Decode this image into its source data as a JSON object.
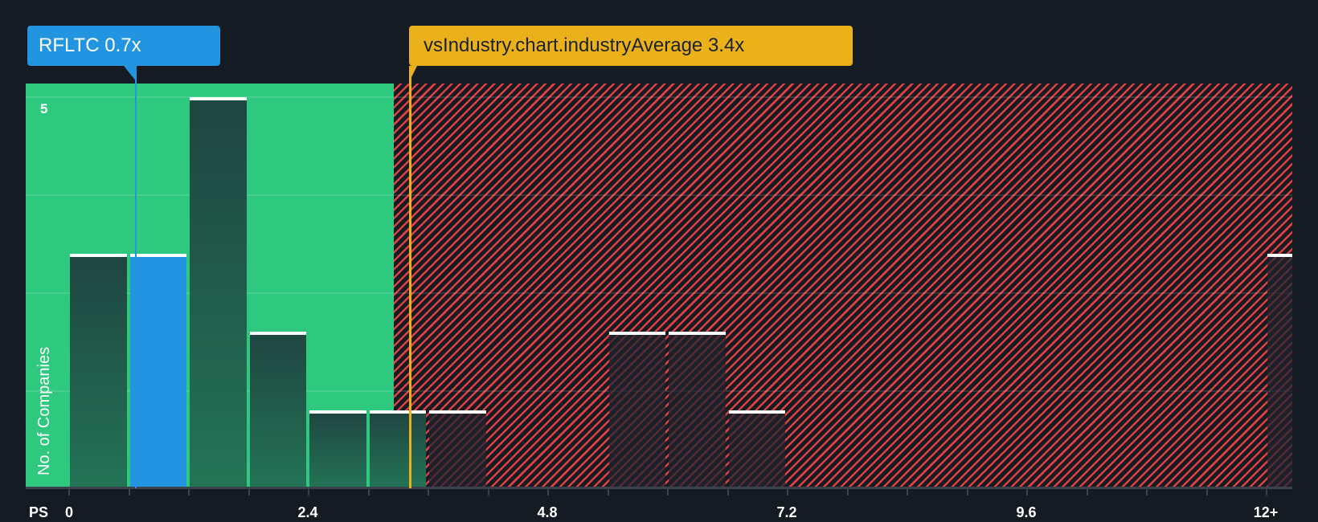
{
  "colors": {
    "background": "#151b23",
    "good_zone": "#2ec97f",
    "bad_zone_hatch": "#e0403f",
    "company": "#2394e0",
    "industry": "#ebb11a",
    "bar_cap": "#ffffff"
  },
  "callouts": {
    "company": {
      "label": "RFLTC 0.7x",
      "value": 0.7
    },
    "industry": {
      "label": "vsIndustry.chart.industryAverage 3.4x",
      "value": 3.4
    }
  },
  "axis": {
    "x_title": "PS",
    "y_title": "No. of Companies",
    "y_tick": "5",
    "x_ticks": [
      "0",
      "2.4",
      "4.8",
      "7.2",
      "9.6",
      "12+"
    ]
  },
  "chart_data": {
    "type": "bar",
    "title": "",
    "xlabel": "PS",
    "ylabel": "No. of Companies",
    "bin_width": 0.6,
    "categories": [
      "0-0.6",
      "0.6-1.2",
      "1.2-1.8",
      "1.8-2.4",
      "2.4-3.0",
      "3.0-3.6",
      "3.6-4.2",
      "4.2-4.8",
      "4.8-5.4",
      "5.4-6.0",
      "6.0-6.6",
      "6.6-7.2",
      "12+"
    ],
    "values": [
      3,
      3,
      5,
      2,
      1,
      1,
      1,
      0,
      0,
      2,
      2,
      1,
      3
    ],
    "highlight_bin": "0.6-1.2",
    "company_value": 0.7,
    "industry_average": 3.4,
    "xlim": [
      0,
      12.3
    ],
    "ylim": [
      0,
      5.2
    ],
    "x_tick_labels": [
      "0",
      "2.4",
      "4.8",
      "7.2",
      "9.6",
      "12+"
    ],
    "y_tick_labels": [
      "5"
    ],
    "grid": true,
    "legend": "none"
  }
}
